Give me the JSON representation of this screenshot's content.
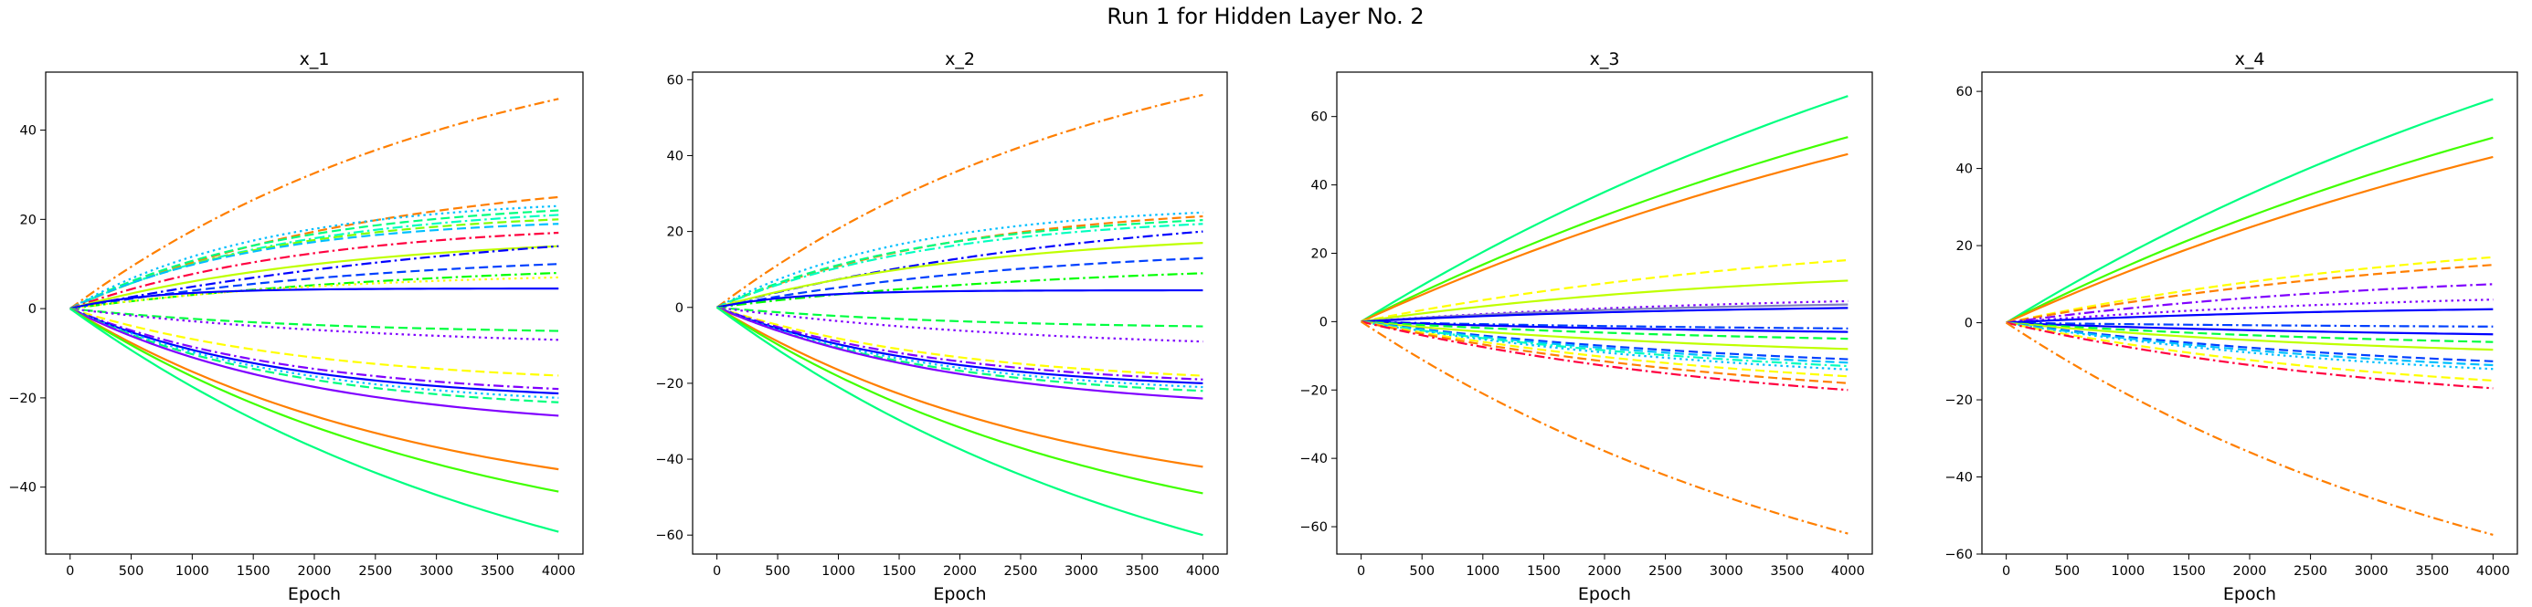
{
  "figure": {
    "title": "Run 1 for Hidden Layer No. 2"
  },
  "chart_data": [
    {
      "type": "line",
      "title": "x_1",
      "xlabel": "Epoch",
      "ylabel": "",
      "xlim": [
        -200,
        4200
      ],
      "ylim": [
        -55,
        53
      ],
      "xticks": [
        0,
        500,
        1000,
        1500,
        2000,
        2500,
        3000,
        3500,
        4000
      ],
      "yticks": [
        -40,
        -20,
        0,
        20,
        40
      ],
      "x": [
        0,
        4000
      ],
      "series": [
        {
          "color": "#ff7f00",
          "dash": "dashdot",
          "end": 47,
          "curv": 1.2
        },
        {
          "color": "#ff7f00",
          "dash": "dashed",
          "end": 25,
          "curv": 1.6
        },
        {
          "color": "#00bfff",
          "dash": "dotted",
          "end": 23,
          "curv": 2.5
        },
        {
          "color": "#00ff7f",
          "dash": "dashed",
          "end": 22,
          "curv": 2.3
        },
        {
          "color": "#00ffbf",
          "dash": "dashdot",
          "end": 21,
          "curv": 2.2
        },
        {
          "color": "#7fff00",
          "dash": "dashed",
          "end": 20,
          "curv": 2.4
        },
        {
          "color": "#00bfff",
          "dash": "dashed",
          "end": 19,
          "curv": 2.6
        },
        {
          "color": "#ff0040",
          "dash": "dashdot",
          "end": 17,
          "curv": 2.0
        },
        {
          "color": "#bfff00",
          "dash": "solid",
          "end": 14,
          "curv": 1.8
        },
        {
          "color": "#0000ff",
          "dash": "dashdot",
          "end": 14,
          "curv": 1.0
        },
        {
          "color": "#0040ff",
          "dash": "dashed",
          "end": 10,
          "curv": 1.5
        },
        {
          "color": "#00ff00",
          "dash": "dashdot",
          "end": 8,
          "curv": 1.3
        },
        {
          "color": "#ffff00",
          "dash": "dotted",
          "end": 7,
          "curv": 1.8
        },
        {
          "color": "#0000ff",
          "dash": "solid",
          "end": 4.5,
          "curv": 6.0
        },
        {
          "color": "#00ff40",
          "dash": "dashed",
          "end": -5,
          "curv": 2.0
        },
        {
          "color": "#8000ff",
          "dash": "dotted",
          "end": -7,
          "curv": 1.5
        },
        {
          "color": "#ffff00",
          "dash": "dashed",
          "end": -15,
          "curv": 2.0
        },
        {
          "color": "#8000ff",
          "dash": "dashdot",
          "end": -18,
          "curv": 2.2
        },
        {
          "color": "#0000ff",
          "dash": "solid",
          "end": -19,
          "curv": 2.3
        },
        {
          "color": "#00bfff",
          "dash": "dotted",
          "end": -20,
          "curv": 2.3
        },
        {
          "color": "#00ff7f",
          "dash": "dashed",
          "end": -21,
          "curv": 2.3
        },
        {
          "color": "#8000ff",
          "dash": "solid",
          "end": -24,
          "curv": 2.0
        },
        {
          "color": "#ff7f00",
          "dash": "solid",
          "end": -36,
          "curv": 1.4
        },
        {
          "color": "#40ff00",
          "dash": "solid",
          "end": -41,
          "curv": 1.2
        },
        {
          "color": "#00ff80",
          "dash": "solid",
          "end": -50,
          "curv": 1.0
        }
      ]
    },
    {
      "type": "line",
      "title": "x_2",
      "xlabel": "Epoch",
      "ylabel": "",
      "xlim": [
        -200,
        4200
      ],
      "ylim": [
        -65,
        62
      ],
      "xticks": [
        0,
        500,
        1000,
        1500,
        2000,
        2500,
        3000,
        3500,
        4000
      ],
      "yticks": [
        -60,
        -40,
        -20,
        0,
        20,
        40,
        60
      ],
      "x": [
        0,
        4000
      ],
      "series": [
        {
          "color": "#ff7f00",
          "dash": "dashdot",
          "end": 56,
          "curv": 1.2
        },
        {
          "color": "#00bfff",
          "dash": "dotted",
          "end": 25,
          "curv": 2.5
        },
        {
          "color": "#ff7f00",
          "dash": "dashed",
          "end": 24,
          "curv": 2.0
        },
        {
          "color": "#00ff7f",
          "dash": "dashed",
          "end": 23,
          "curv": 2.3
        },
        {
          "color": "#00ffbf",
          "dash": "dashdot",
          "end": 22,
          "curv": 2.2
        },
        {
          "color": "#0000ff",
          "dash": "dashdot",
          "end": 20,
          "curv": 1.2
        },
        {
          "color": "#bfff00",
          "dash": "solid",
          "end": 17,
          "curv": 1.8
        },
        {
          "color": "#0040ff",
          "dash": "dashed",
          "end": 13,
          "curv": 1.5
        },
        {
          "color": "#00ff00",
          "dash": "dashdot",
          "end": 9,
          "curv": 1.3
        },
        {
          "color": "#0000ff",
          "dash": "solid",
          "end": 4.5,
          "curv": 6.0
        },
        {
          "color": "#00ff40",
          "dash": "dashed",
          "end": -5,
          "curv": 2.0
        },
        {
          "color": "#8000ff",
          "dash": "dotted",
          "end": -9,
          "curv": 1.5
        },
        {
          "color": "#ffff00",
          "dash": "dashed",
          "end": -18,
          "curv": 2.0
        },
        {
          "color": "#8000ff",
          "dash": "dashdot",
          "end": -19,
          "curv": 2.2
        },
        {
          "color": "#0000ff",
          "dash": "solid",
          "end": -20,
          "curv": 2.3
        },
        {
          "color": "#00bfff",
          "dash": "dotted",
          "end": -21,
          "curv": 2.3
        },
        {
          "color": "#00ff7f",
          "dash": "dashed",
          "end": -22,
          "curv": 2.3
        },
        {
          "color": "#8000ff",
          "dash": "solid",
          "end": -24,
          "curv": 2.0
        },
        {
          "color": "#ff7f00",
          "dash": "solid",
          "end": -42,
          "curv": 1.4
        },
        {
          "color": "#40ff00",
          "dash": "solid",
          "end": -49,
          "curv": 1.2
        },
        {
          "color": "#00ff80",
          "dash": "solid",
          "end": -60,
          "curv": 1.0
        }
      ]
    },
    {
      "type": "line",
      "title": "x_3",
      "xlabel": "Epoch",
      "ylabel": "",
      "xlim": [
        -200,
        4200
      ],
      "ylim": [
        -68,
        73
      ],
      "xticks": [
        0,
        500,
        1000,
        1500,
        2000,
        2500,
        3000,
        3500,
        4000
      ],
      "yticks": [
        -60,
        -40,
        -20,
        0,
        20,
        40,
        60
      ],
      "x": [
        0,
        4000
      ],
      "series": [
        {
          "color": "#00ff80",
          "dash": "solid",
          "end": 66,
          "curv": 0.6
        },
        {
          "color": "#40ff00",
          "dash": "solid",
          "end": 54,
          "curv": 0.6
        },
        {
          "color": "#ff7f00",
          "dash": "solid",
          "end": 49,
          "curv": 0.6
        },
        {
          "color": "#ffff00",
          "dash": "dashed",
          "end": 18,
          "curv": 1.0
        },
        {
          "color": "#bfff00",
          "dash": "solid",
          "end": 12,
          "curv": 1.2
        },
        {
          "color": "#8000ff",
          "dash": "dotted",
          "end": 6,
          "curv": 1.2
        },
        {
          "color": "#8080c0",
          "dash": "solid",
          "end": 5,
          "curv": 1.5
        },
        {
          "color": "#0000ff",
          "dash": "solid",
          "end": 4,
          "curv": 1.5
        },
        {
          "color": "#0040ff",
          "dash": "dashdot",
          "end": -2,
          "curv": 1.2
        },
        {
          "color": "#0000ff",
          "dash": "solid",
          "end": -3,
          "curv": 1.2
        },
        {
          "color": "#00ff40",
          "dash": "dashed",
          "end": -5,
          "curv": 1.2
        },
        {
          "color": "#bfff00",
          "dash": "solid",
          "end": -8,
          "curv": 1.2
        },
        {
          "color": "#0040ff",
          "dash": "dashed",
          "end": -11,
          "curv": 1.2
        },
        {
          "color": "#00bfff",
          "dash": "dashed",
          "end": -12,
          "curv": 1.2
        },
        {
          "color": "#00ffbf",
          "dash": "dashdot",
          "end": -13,
          "curv": 1.2
        },
        {
          "color": "#00bfff",
          "dash": "dotted",
          "end": -14,
          "curv": 1.2
        },
        {
          "color": "#ffff00",
          "dash": "dashed",
          "end": -16,
          "curv": 1.2
        },
        {
          "color": "#ff7f00",
          "dash": "dashed",
          "end": -18,
          "curv": 1.2
        },
        {
          "color": "#ff0040",
          "dash": "dashdot",
          "end": -20,
          "curv": 1.2
        },
        {
          "color": "#ff7f00",
          "dash": "dashdot",
          "end": -62,
          "curv": 0.9
        }
      ]
    },
    {
      "type": "line",
      "title": "x_4",
      "xlabel": "Epoch",
      "ylabel": "",
      "xlim": [
        -200,
        4200
      ],
      "ylim": [
        -60,
        65
      ],
      "xticks": [
        0,
        500,
        1000,
        1500,
        2000,
        2500,
        3000,
        3500,
        4000
      ],
      "yticks": [
        -60,
        -40,
        -20,
        0,
        20,
        40,
        60
      ],
      "x": [
        0,
        4000
      ],
      "series": [
        {
          "color": "#00ff80",
          "dash": "solid",
          "end": 58,
          "curv": 0.6
        },
        {
          "color": "#40ff00",
          "dash": "solid",
          "end": 48,
          "curv": 0.6
        },
        {
          "color": "#ff7f00",
          "dash": "solid",
          "end": 43,
          "curv": 0.6
        },
        {
          "color": "#ffff00",
          "dash": "dashed",
          "end": 17,
          "curv": 1.0
        },
        {
          "color": "#ff7f00",
          "dash": "dashed",
          "end": 15,
          "curv": 1.0
        },
        {
          "color": "#8000ff",
          "dash": "dashdot",
          "end": 10,
          "curv": 1.2
        },
        {
          "color": "#8000ff",
          "dash": "dotted",
          "end": 6,
          "curv": 1.2
        },
        {
          "color": "#0000ff",
          "dash": "solid",
          "end": 3.5,
          "curv": 1.5
        },
        {
          "color": "#0040ff",
          "dash": "dashdot",
          "end": -1,
          "curv": 1.2
        },
        {
          "color": "#0000ff",
          "dash": "solid",
          "end": -3,
          "curv": 1.2
        },
        {
          "color": "#00ff40",
          "dash": "dashed",
          "end": -5,
          "curv": 1.2
        },
        {
          "color": "#bfff00",
          "dash": "solid",
          "end": -7,
          "curv": 1.2
        },
        {
          "color": "#0040ff",
          "dash": "dashed",
          "end": -10,
          "curv": 1.2
        },
        {
          "color": "#00bfff",
          "dash": "dashed",
          "end": -11,
          "curv": 1.2
        },
        {
          "color": "#00bfff",
          "dash": "dotted",
          "end": -12,
          "curv": 1.2
        },
        {
          "color": "#ffff00",
          "dash": "dashed",
          "end": -15,
          "curv": 1.2
        },
        {
          "color": "#ff0040",
          "dash": "dashdot",
          "end": -17,
          "curv": 1.2
        },
        {
          "color": "#ff7f00",
          "dash": "dashdot",
          "end": -55,
          "curv": 0.9
        }
      ]
    }
  ]
}
